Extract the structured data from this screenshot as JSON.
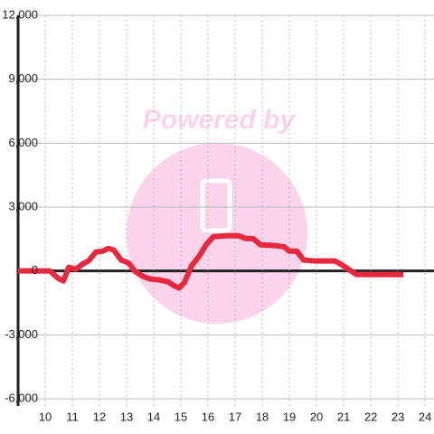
{
  "chart_data": {
    "type": "line",
    "annotation": "Powered by",
    "xlim": [
      9,
      24.33
    ],
    "xticks": [
      10,
      11,
      12,
      13,
      14,
      15,
      16,
      17,
      18,
      19,
      20,
      21,
      22,
      23,
      24
    ],
    "ylim": [
      -6000,
      12000
    ],
    "yticks": [
      {
        "value": -6000,
        "label": "-6,000"
      },
      {
        "value": -3000,
        "label": "-3,000"
      },
      0,
      {
        "value": 3000,
        "label": "3,000"
      },
      {
        "value": 6000,
        "label": "6,000"
      },
      {
        "value": 9000,
        "label": "9,000"
      },
      {
        "value": 12000,
        "label": "12,000"
      }
    ],
    "grid": true,
    "series": [
      {
        "color": "#e8283c",
        "x": [
          9,
          10.17,
          10.47,
          10.67,
          10.87,
          11.13,
          11.4,
          11.6,
          11.87,
          12.13,
          12.33,
          12.53,
          12.8,
          13.07,
          13.33,
          13.6,
          13.87,
          14.2,
          14.53,
          14.73,
          14.93,
          15.13,
          15.4,
          15.67,
          15.93,
          16.2,
          16.67,
          17.13,
          17.4,
          17.67,
          17.93,
          18.47,
          18.8,
          19,
          19.27,
          19.53,
          19.93,
          20.67,
          20.87,
          21.07,
          21.27,
          21.47,
          23.2
        ],
        "values": [
          0,
          0,
          -340,
          -470,
          170,
          85,
          340,
          470,
          890,
          930,
          1060,
          980,
          510,
          380,
          -40,
          -250,
          -380,
          -420,
          -510,
          -680,
          -800,
          -550,
          250,
          680,
          1230,
          1610,
          1650,
          1650,
          1520,
          1520,
          1230,
          1190,
          1140,
          930,
          930,
          510,
          470,
          470,
          340,
          170,
          0,
          -170,
          -170
        ]
      }
    ]
  }
}
